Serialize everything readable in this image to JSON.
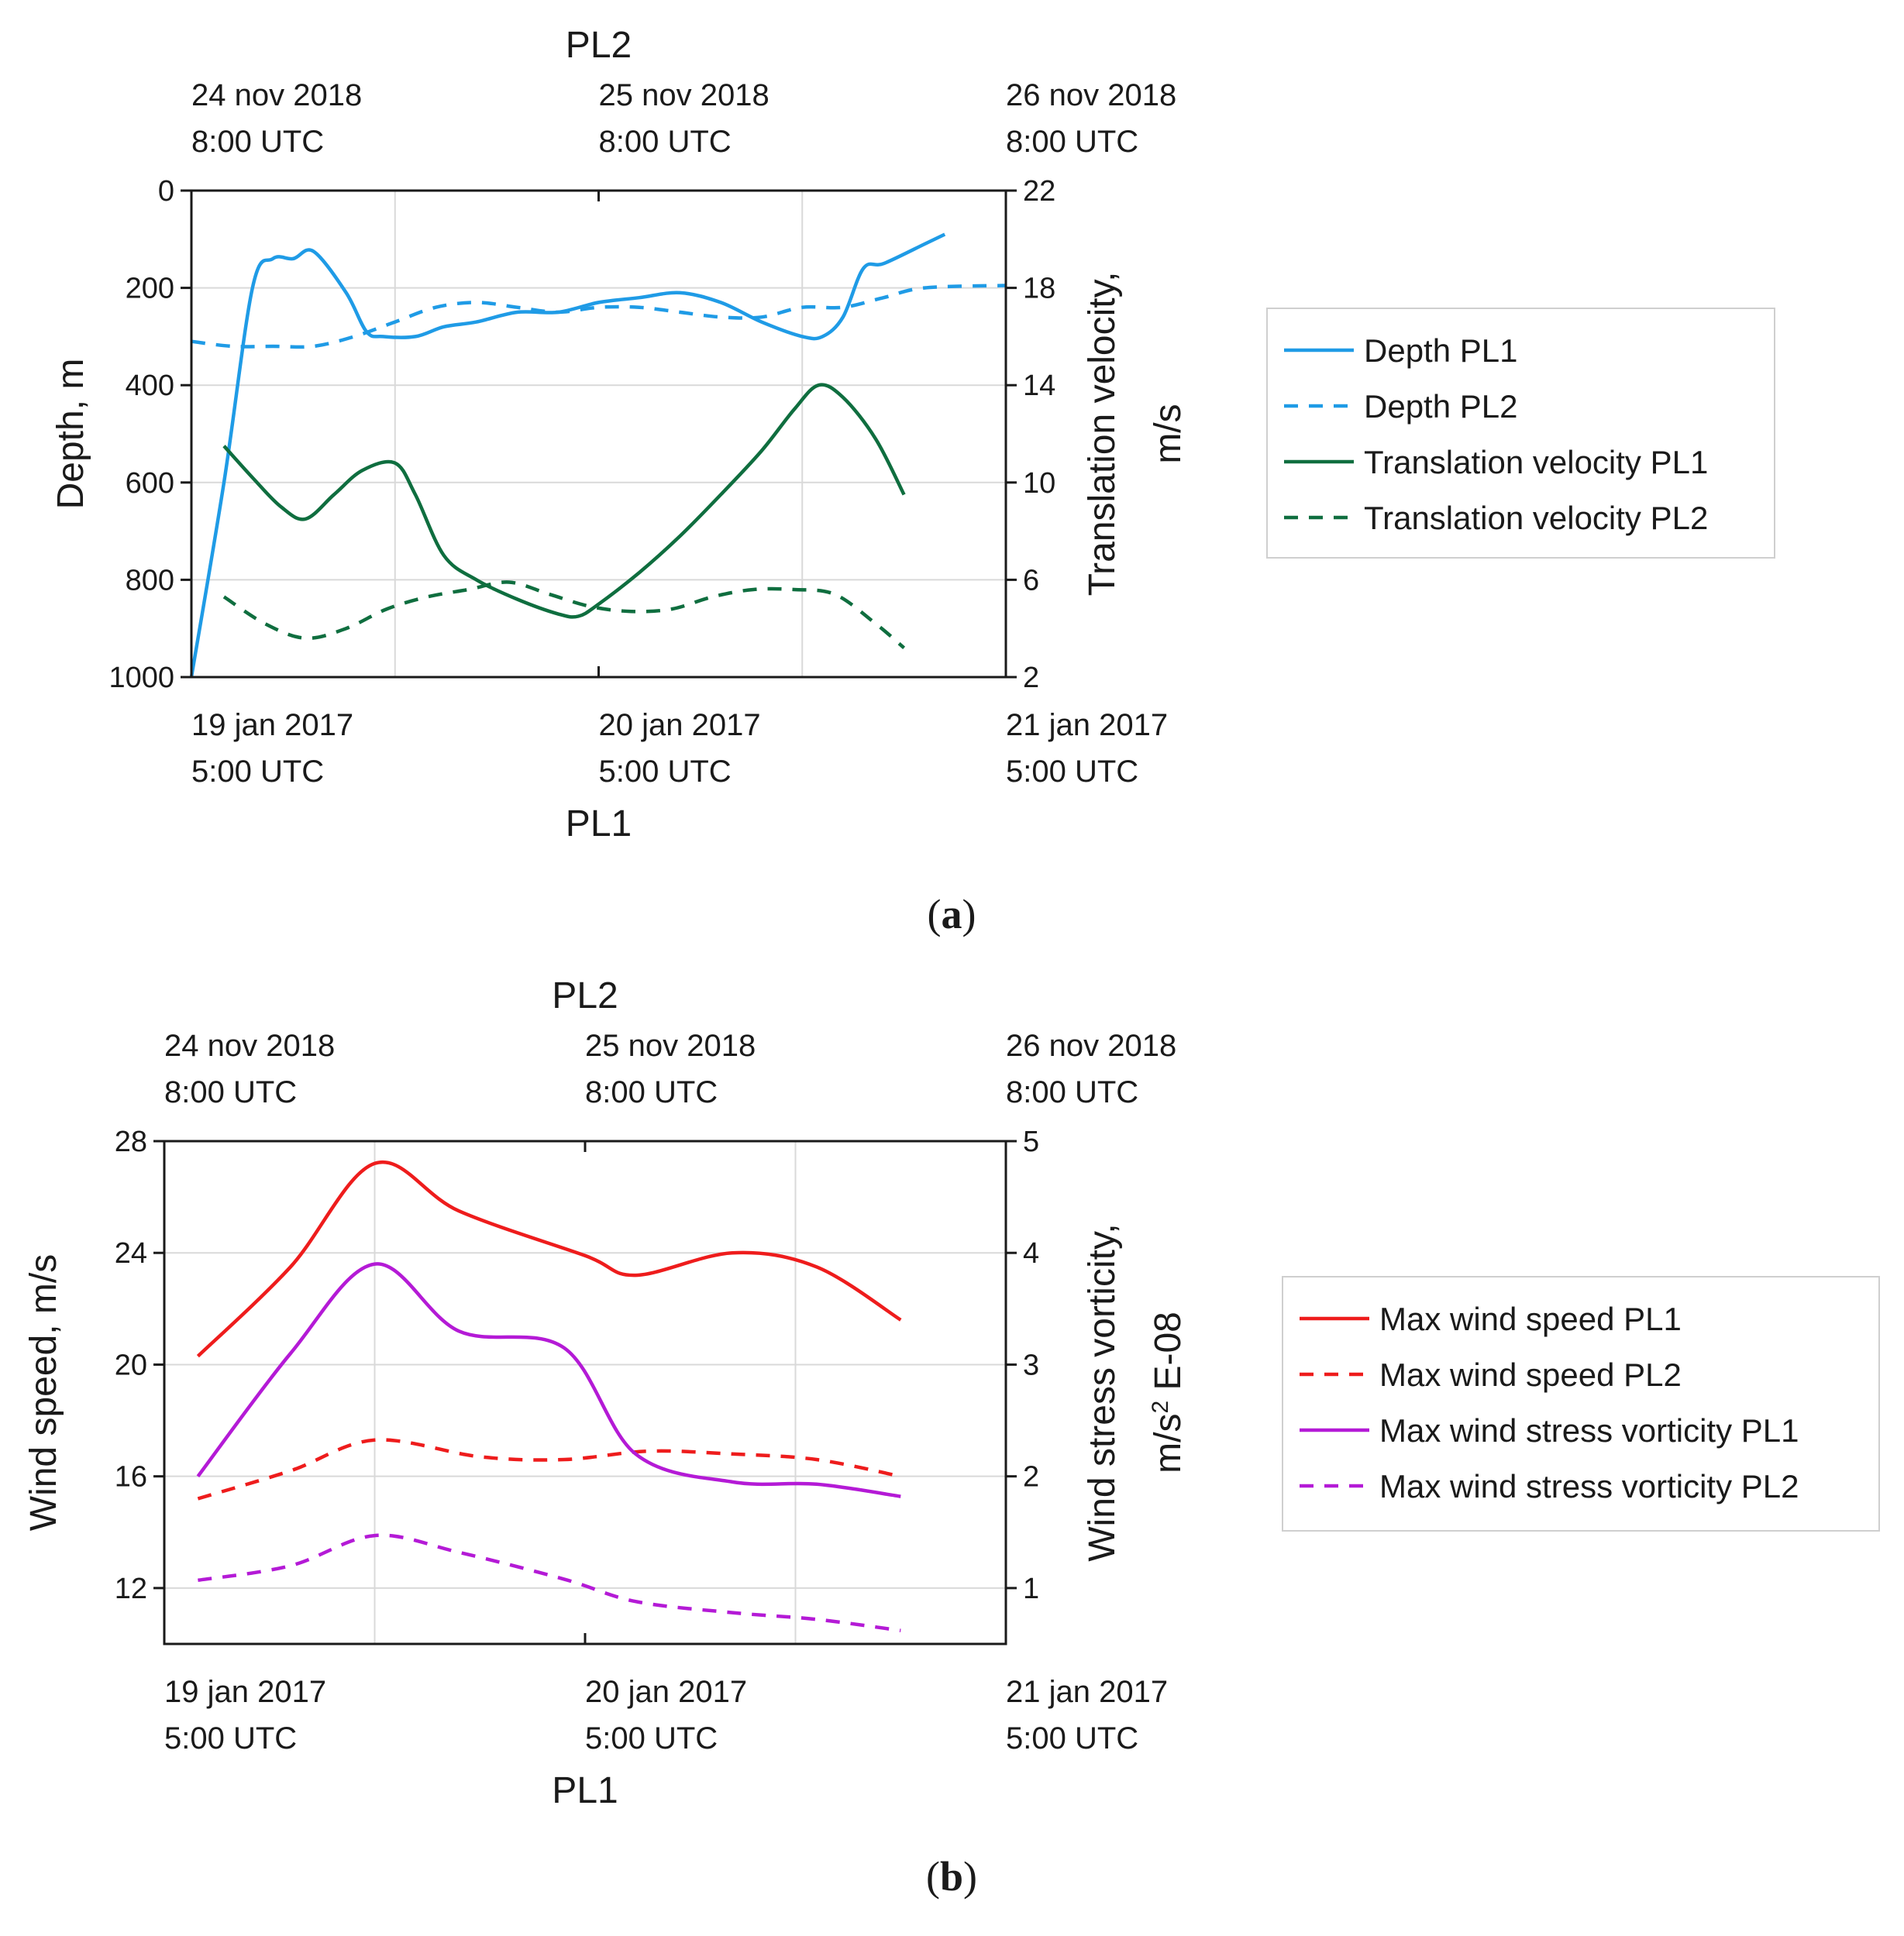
{
  "chart_data": [
    {
      "type": "line",
      "panel_label": "a",
      "top_axis": {
        "label": "PL2",
        "ticks": [
          {
            "date": "24 nov 2018",
            "time": "8:00 UTC"
          },
          {
            "date": "25 nov 2018",
            "time": "8:00 UTC"
          },
          {
            "date": "26 nov 2018",
            "time": "8:00 UTC"
          }
        ]
      },
      "bottom_axis": {
        "label": "PL1",
        "ticks": [
          {
            "date": "19 jan 2017",
            "time": "5:00 UTC"
          },
          {
            "date": "20 jan 2017",
            "time": "5:00 UTC"
          },
          {
            "date": "21 jan 2017",
            "time": "5:00 UTC"
          }
        ]
      },
      "xlim_days": [
        0,
        2
      ],
      "left_axis": {
        "label": "Depth, m",
        "ylim": [
          1000,
          0
        ],
        "reversed": true,
        "ticks": [
          0,
          200,
          400,
          600,
          800,
          1000
        ]
      },
      "right_axis": {
        "label_line1": "Translation velocity,",
        "label_line2": "m/s",
        "ylim": [
          2,
          22
        ],
        "ticks": [
          2,
          6,
          10,
          14,
          18,
          22
        ]
      },
      "grid": true,
      "legend_position": "right",
      "series": [
        {
          "name": "Depth  PL1",
          "axis": "left",
          "color": "#1f9be6",
          "dash": "solid",
          "x": [
            0,
            0.08,
            0.15,
            0.2,
            0.25,
            0.3,
            0.38,
            0.43,
            0.47,
            0.55,
            0.62,
            0.7,
            0.8,
            0.9,
            1.0,
            1.1,
            1.2,
            1.3,
            1.4,
            1.5,
            1.55,
            1.6,
            1.65,
            1.7,
            1.8,
            1.85
          ],
          "y": [
            1000,
            600,
            200,
            140,
            140,
            125,
            210,
            290,
            300,
            300,
            280,
            270,
            250,
            250,
            230,
            220,
            210,
            230,
            270,
            300,
            300,
            260,
            160,
            150,
            110,
            90
          ]
        },
        {
          "name": "Depth  PL2",
          "axis": "left",
          "color": "#1f9be6",
          "dash": "dashed",
          "x": [
            0,
            0.1,
            0.2,
            0.3,
            0.4,
            0.5,
            0.6,
            0.7,
            0.8,
            0.9,
            1.0,
            1.1,
            1.2,
            1.3,
            1.4,
            1.5,
            1.6,
            1.7,
            1.8,
            2.0
          ],
          "y": [
            310,
            320,
            320,
            320,
            300,
            270,
            240,
            230,
            240,
            250,
            240,
            240,
            250,
            260,
            260,
            240,
            240,
            220,
            200,
            195
          ]
        },
        {
          "name": "Translation velocity PL1",
          "axis": "right",
          "color": "#0f6e3f",
          "dash": "solid",
          "x": [
            0.08,
            0.15,
            0.22,
            0.28,
            0.35,
            0.42,
            0.5,
            0.55,
            0.62,
            0.7,
            0.8,
            0.9,
            0.95,
            1.0,
            1.1,
            1.2,
            1.3,
            1.4,
            1.48,
            1.54,
            1.6,
            1.68,
            1.75
          ],
          "y": [
            11.5,
            10.2,
            9.0,
            8.5,
            9.5,
            10.5,
            10.8,
            9.5,
            7.0,
            6.0,
            5.2,
            4.6,
            4.5,
            5.0,
            6.3,
            7.8,
            9.5,
            11.3,
            13.0,
            14.0,
            13.5,
            11.8,
            9.5
          ]
        },
        {
          "name": "Translation velocity PL2",
          "axis": "right",
          "color": "#0f6e3f",
          "dash": "dashed",
          "x": [
            0.08,
            0.18,
            0.28,
            0.38,
            0.48,
            0.58,
            0.68,
            0.78,
            0.88,
            0.98,
            1.08,
            1.18,
            1.28,
            1.38,
            1.48,
            1.58,
            1.68,
            1.75
          ],
          "y": [
            5.3,
            4.2,
            3.6,
            4.0,
            4.8,
            5.3,
            5.6,
            5.9,
            5.4,
            4.9,
            4.7,
            4.8,
            5.3,
            5.6,
            5.6,
            5.4,
            4.2,
            3.2
          ]
        }
      ]
    },
    {
      "type": "line",
      "panel_label": "b",
      "top_axis": {
        "label": "PL2",
        "ticks": [
          {
            "date": "24 nov 2018",
            "time": "8:00 UTC"
          },
          {
            "date": "25 nov 2018",
            "time": "8:00 UTC"
          },
          {
            "date": "26 nov 2018",
            "time": "8:00 UTC"
          }
        ]
      },
      "bottom_axis": {
        "label": "PL1",
        "ticks": [
          {
            "date": "19 jan 2017",
            "time": "5:00 UTC"
          },
          {
            "date": "20 jan 2017",
            "time": "5:00 UTC"
          },
          {
            "date": "21 jan 2017",
            "time": "5:00 UTC"
          }
        ]
      },
      "xlim_days": [
        0,
        2
      ],
      "left_axis": {
        "label": "Wind speed, m/s",
        "ylim": [
          10,
          28
        ],
        "ticks": [
          12,
          16,
          20,
          24,
          28
        ]
      },
      "right_axis": {
        "label_line1": "Wind stress vorticity,",
        "label_line2_pre": "m/s",
        "label_line2_sup": "2",
        "label_line2_post": " E-08",
        "ylim": [
          0.5,
          5
        ],
        "ticks": [
          1,
          2,
          3,
          4,
          5
        ]
      },
      "grid": true,
      "legend_position": "right",
      "series": [
        {
          "name": "Max wind speed PL1",
          "axis": "left",
          "color": "#ee1c1c",
          "dash": "solid",
          "x": [
            0.08,
            0.3,
            0.5,
            0.7,
            1.0,
            1.12,
            1.35,
            1.55,
            1.75
          ],
          "y": [
            20.3,
            23.5,
            27.2,
            25.5,
            23.9,
            23.2,
            24.0,
            23.5,
            21.6
          ]
        },
        {
          "name": "Max wind speed PL2",
          "axis": "left",
          "color": "#ee1c1c",
          "dash": "dashed",
          "x": [
            0.08,
            0.3,
            0.5,
            0.75,
            0.95,
            1.15,
            1.35,
            1.55,
            1.75
          ],
          "y": [
            15.2,
            16.2,
            17.3,
            16.7,
            16.6,
            16.9,
            16.8,
            16.6,
            16.0
          ]
        },
        {
          "name": "Max wind stress vorticity PL1",
          "axis": "right",
          "color": "#b41ad6",
          "dash": "solid",
          "x": [
            0.08,
            0.3,
            0.5,
            0.7,
            0.95,
            1.12,
            1.35,
            1.55,
            1.75
          ],
          "y": [
            2.0,
            3.1,
            3.9,
            3.3,
            3.15,
            2.2,
            1.95,
            1.93,
            1.82
          ]
        },
        {
          "name": "Max wind stress vorticity PL2",
          "axis": "right",
          "color": "#b41ad6",
          "dash": "dashed",
          "x": [
            0.08,
            0.3,
            0.5,
            0.7,
            0.95,
            1.12,
            1.35,
            1.55,
            1.75
          ],
          "y": [
            1.07,
            1.2,
            1.47,
            1.32,
            1.08,
            0.88,
            0.78,
            0.72,
            0.62
          ]
        }
      ]
    }
  ]
}
